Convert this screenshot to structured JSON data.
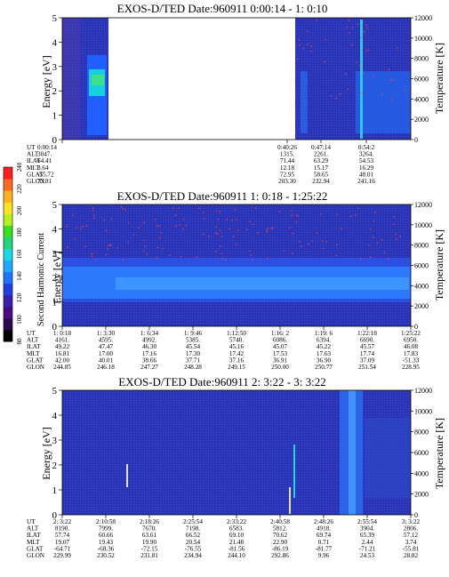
{
  "colorbar": {
    "title": "Second Harmonic Current",
    "ticks": [
      "240",
      "220",
      "200",
      "180",
      "160",
      "140",
      "120",
      "100",
      "80"
    ],
    "colors": [
      "#000000",
      "#2a0a4a",
      "#4b0a82",
      "#3a1fb0",
      "#1f3fe0",
      "#1f74ff",
      "#1fa8ff",
      "#19d6e8",
      "#1fd77a",
      "#39e01f",
      "#b8f01f",
      "#ffe31f",
      "#ffb21f",
      "#ff6a1f",
      "#ff1f1f"
    ]
  },
  "chart_data": [
    {
      "type": "heatmap",
      "title": "EXOS-D/TED   Date:960911  0:00:14 - 1: 0:10",
      "ylabel": "Energy [eV]",
      "y2label": "Temperature [K]",
      "ylim": [
        0,
        5
      ],
      "y2lim": [
        0,
        12000
      ],
      "yticks": [
        "0",
        "1",
        "2",
        "3",
        "4",
        "5"
      ],
      "y2ticks": [
        "0",
        "2000",
        "4000",
        "6000",
        "8000",
        "10000",
        "12000"
      ],
      "data_gap": true,
      "row_labels": [
        "UT",
        "ALT",
        "ILAT",
        "MLT",
        "GLAT",
        "GLON"
      ],
      "columns": [
        [
          "0:00:14",
          "3047.",
          "64.41",
          "3.64",
          "-55.72",
          "73.81"
        ],
        [
          "0:40:26",
          "1315.",
          "71.44",
          "12.18",
          "72.95",
          "203.30"
        ],
        [
          "0:47:14",
          "2261.",
          "63.29",
          "15.17",
          "58.65",
          "232.94"
        ],
        [
          "0:54:2",
          "3264.",
          "54.53",
          "16.29",
          "48.01",
          "241.16"
        ]
      ]
    },
    {
      "type": "heatmap",
      "title": "EXOS-D/TED   Date:960911  1: 0:18 - 1:25:22",
      "ylabel": "Energy [eV]",
      "y2label": "Temperature [K]",
      "ylim": [
        0,
        5
      ],
      "y2lim": [
        0,
        12000
      ],
      "yticks": [
        "0",
        "1",
        "2",
        "3",
        "4",
        "5"
      ],
      "y2ticks": [
        "0",
        "2000",
        "4000",
        "6000",
        "8000",
        "10000",
        "12000"
      ],
      "row_labels": [
        "UT",
        "ALT",
        "ILAT",
        "MLT",
        "GLAT",
        "GLON"
      ],
      "columns": [
        [
          "1: 0:18",
          "4161.",
          "49.22",
          "16.81",
          "42.00",
          "244.85"
        ],
        [
          "1: 3:30",
          "4595.",
          "47.47",
          "17.00",
          "40.01",
          "246.18"
        ],
        [
          "1: 6:34",
          "4992.",
          "46.30",
          "17.16",
          "38.66",
          "247.27"
        ],
        [
          "1: 9:46",
          "5385.",
          "45.54",
          "17.30",
          "37.71",
          "248.28"
        ],
        [
          "1:12:50",
          "5740.",
          "45.16",
          "17.42",
          "37.16",
          "249.15"
        ],
        [
          "1:16: 2",
          "6086.",
          "45.07",
          "17.53",
          "36.91",
          "250.00"
        ],
        [
          "1:19: 6",
          "6394.",
          "45.22",
          "17.63",
          "36.90",
          "250.77"
        ],
        [
          "1:22:18",
          "6690.",
          "45.57",
          "17.74",
          "37.09",
          "251.54"
        ],
        [
          "1:25:22",
          "6950.",
          "46.08",
          "17.83",
          "-51.33",
          "228.95"
        ]
      ]
    },
    {
      "type": "heatmap",
      "title": "EXOS-D/TED   Date:960911  2: 3:22 - 3: 3:22",
      "ylabel": "Energy [eV]",
      "y2label": "Temperature [K]",
      "ylim": [
        0,
        5
      ],
      "y2lim": [
        0,
        12000
      ],
      "yticks": [
        "0",
        "1",
        "2",
        "3",
        "4",
        "5"
      ],
      "y2ticks": [
        "0",
        "2000",
        "4000",
        "6000",
        "8000",
        "10000",
        "12000"
      ],
      "row_labels": [
        "UT",
        "ALT",
        "ILAT",
        "MLT",
        "GLAT",
        "GLON"
      ],
      "columns": [
        [
          "2: 3:22",
          "8190.",
          "57.74",
          "19.07",
          "-64.71",
          "229.99"
        ],
        [
          "2:10:58",
          "7999.",
          "60.66",
          "19.43",
          "-68.36",
          "230.52"
        ],
        [
          "2:18:26",
          "7670.",
          "63.61",
          "19.90",
          "-72.15",
          "231.81"
        ],
        [
          "2:25:54",
          "7198.",
          "66.52",
          "20.54",
          "-76.55",
          "234.94"
        ],
        [
          "2:33:22",
          "6583.",
          "69.10",
          "21.48",
          "-81.56",
          "244.10"
        ],
        [
          "2:40:58",
          "5812.",
          "70.62",
          "22.90",
          "-86.19",
          "292.86"
        ],
        [
          "2:48:26",
          "4918.",
          "69.74",
          "0.71",
          "-81.77",
          "9.96"
        ],
        [
          "2:55:54",
          "3904.",
          "65.39",
          "2.44",
          "-71.21",
          "24.53"
        ],
        [
          "3: 3:22",
          "2806.",
          "57.12",
          "3.74",
          "-55.81",
          "28.82"
        ]
      ]
    }
  ]
}
